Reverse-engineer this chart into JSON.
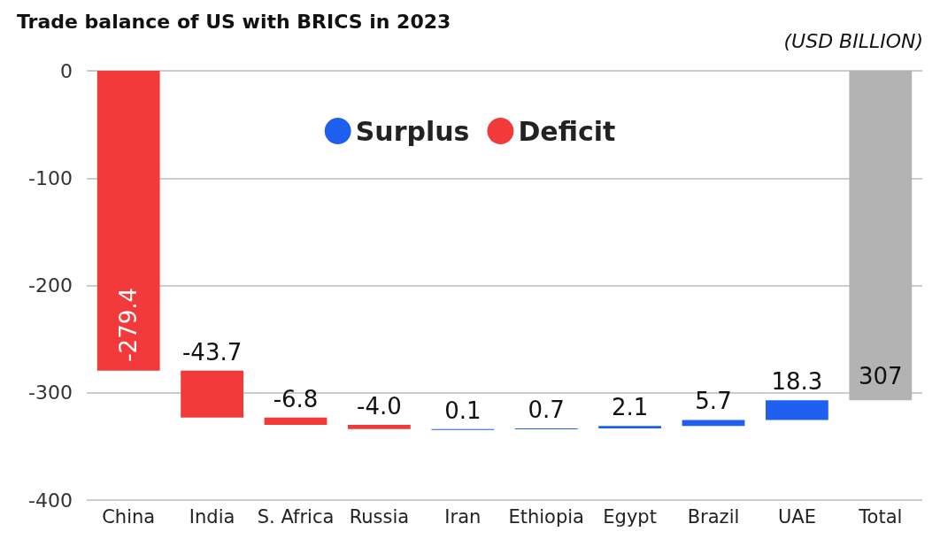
{
  "chart_data": {
    "type": "bar",
    "title": "Trade balance of US with BRICS in 2023",
    "subtitle": "(USD BILLION)",
    "categories": [
      "China",
      "India",
      "S. Africa",
      "Russia",
      "Iran",
      "Ethiopia",
      "Egypt",
      "Brazil",
      "UAE",
      "Total"
    ],
    "series": [
      {
        "name": "Surplus",
        "color": "#1f5ff0",
        "values": [
          null,
          null,
          null,
          null,
          0.1,
          0.7,
          2.1,
          5.7,
          18.3,
          null
        ],
        "base": [
          null,
          null,
          null,
          null,
          -333.9,
          -333.8,
          -333.1,
          -331.0,
          -325.3,
          null
        ],
        "value_labels": [
          null,
          null,
          null,
          null,
          "0.1",
          "0.7",
          "2.1",
          "5.7",
          "18.3",
          null
        ]
      },
      {
        "name": "Deficit",
        "color": "#f23a3a",
        "values": [
          -279.4,
          -43.7,
          -6.8,
          -4.0,
          null,
          null,
          null,
          null,
          null,
          null
        ],
        "base": [
          0,
          -279.4,
          -323.1,
          -329.9,
          null,
          null,
          null,
          null,
          null,
          null
        ],
        "value_labels": [
          "-279.4",
          "-43.7",
          "-6.8",
          "-4.0",
          null,
          null,
          null,
          null,
          null,
          null
        ]
      },
      {
        "color": "#b3b3b3",
        "values": [
          null,
          null,
          null,
          null,
          null,
          null,
          null,
          null,
          null,
          307
        ],
        "base": [
          null,
          null,
          null,
          null,
          null,
          null,
          null,
          null,
          null,
          -307
        ],
        "value_labels": [
          null,
          null,
          null,
          null,
          null,
          null,
          null,
          null,
          null,
          "307"
        ]
      }
    ],
    "ylim": [
      -400,
      0
    ],
    "yticks": [
      0,
      -100,
      -200,
      -300,
      -400
    ],
    "grid": "y",
    "legend": "top"
  }
}
